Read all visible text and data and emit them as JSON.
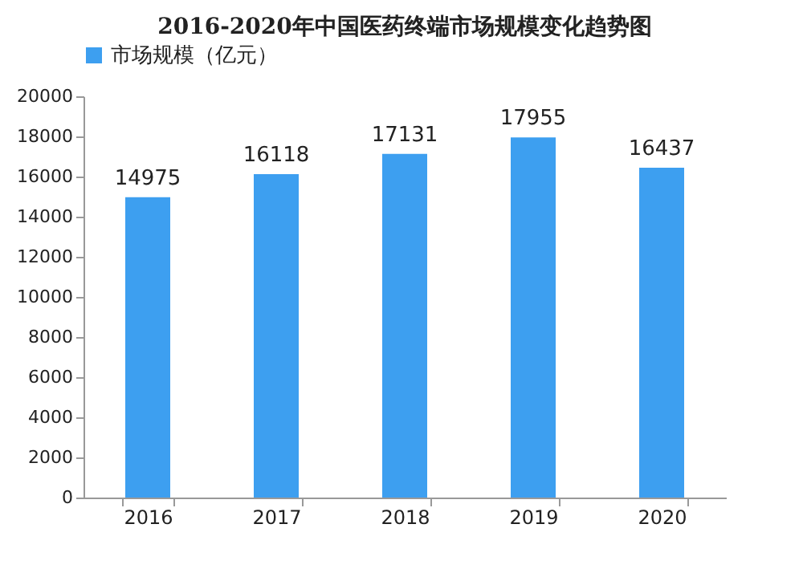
{
  "chart_data": {
    "type": "bar",
    "title": "2016-2020年中国医药终端市场规模变化趋势图",
    "categories": [
      "2016",
      "2017",
      "2018",
      "2019",
      "2020"
    ],
    "series": [
      {
        "name": "市场规模（亿元）",
        "color": "#3d9ff0",
        "values": [
          14975,
          16118,
          17131,
          17955,
          16437
        ]
      }
    ],
    "ylim": [
      0,
      20000
    ],
    "yticks": [
      0,
      2000,
      4000,
      6000,
      8000,
      10000,
      12000,
      14000,
      16000,
      18000,
      20000
    ],
    "grid": false,
    "legend": "top",
    "data_labels": true
  }
}
